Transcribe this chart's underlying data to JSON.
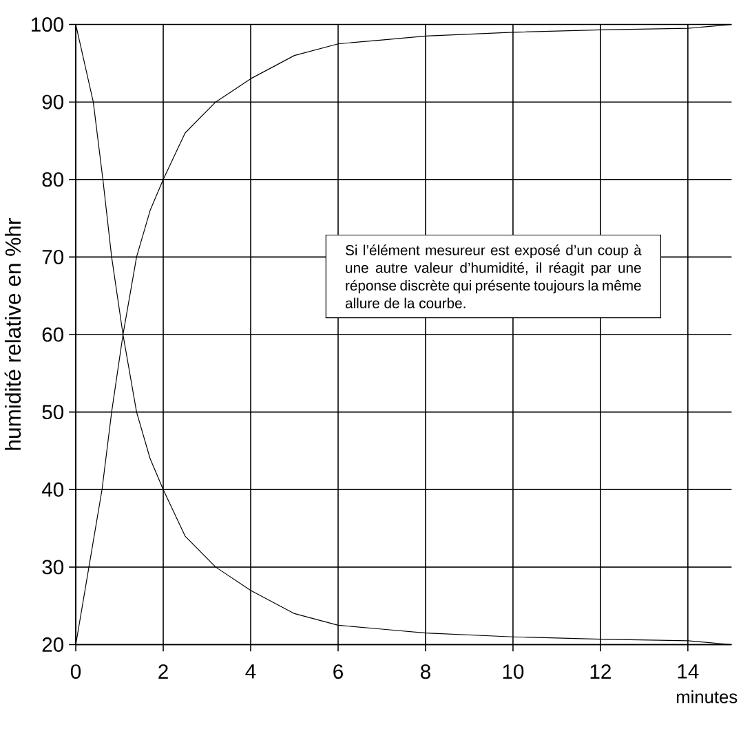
{
  "chart_data": {
    "type": "line",
    "xlabel": "minutes",
    "ylabel": "humidité relative  en %hr",
    "annotations": [
      "Si l’élément mesureur est exposé d’un coup à une autre valeur d’humidité, il réagit par une réponse discrète qui présente toujours la même allure de la courbe."
    ],
    "series": [
      {
        "color": "#000000",
        "x": [
          0,
          0.3,
          0.6,
          0.82,
          1.08,
          1.39,
          1.7,
          2,
          2.5,
          3.2,
          4,
          5,
          6,
          7,
          8,
          10,
          12,
          14,
          15
        ],
        "values": [
          20,
          30,
          40,
          50,
          60,
          70,
          76,
          80,
          86,
          90,
          93,
          96,
          97.5,
          98,
          98.5,
          99,
          99.3,
          99.5,
          100
        ]
      },
      {
        "color": "#000000",
        "x": [
          0,
          0.2,
          0.4,
          0.62,
          0.82,
          1.08,
          1.39,
          1.7,
          2,
          2.5,
          3.2,
          4,
          5,
          6,
          7,
          8,
          10,
          12,
          14,
          15
        ],
        "values": [
          100,
          95,
          90,
          80,
          70,
          60,
          50,
          44,
          40,
          34,
          30,
          27,
          24,
          22.5,
          22,
          21.5,
          21,
          20.7,
          20.5,
          20
        ]
      }
    ],
    "xlim": [
      0,
      15
    ],
    "ylim": [
      20,
      100
    ],
    "xticks": [
      0,
      2,
      4,
      6,
      8,
      10,
      12,
      14
    ],
    "yticks": [
      20,
      30,
      40,
      50,
      60,
      70,
      80,
      90,
      100
    ],
    "grid": true
  }
}
